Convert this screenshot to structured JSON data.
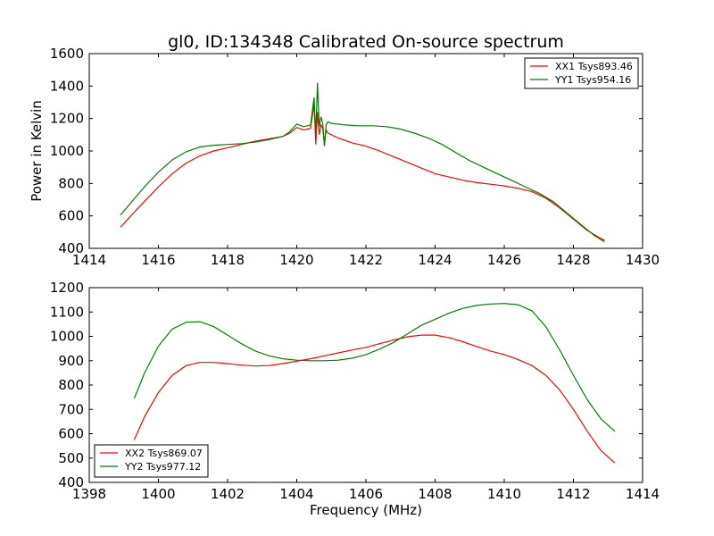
{
  "chart_data": [
    {
      "type": "line",
      "title": "gl0, ID:134348 Calibrated On-source spectrum",
      "xlabel": "",
      "ylabel": "Power in Kelvin",
      "xlim": [
        1414,
        1430
      ],
      "ylim": [
        400,
        1600
      ],
      "xticks": [
        "1414",
        "1416",
        "1418",
        "1420",
        "1422",
        "1424",
        "1426",
        "1428",
        "1430"
      ],
      "yticks": [
        "400",
        "600",
        "800",
        "1000",
        "1200",
        "1400",
        "1600"
      ],
      "legend_position": "top-right",
      "grid": false,
      "series": [
        {
          "name": "XX1 Tsys893.46",
          "color": "#ff0000",
          "x": [
            1414.9,
            1415.2,
            1415.6,
            1416.0,
            1416.4,
            1416.8,
            1417.2,
            1417.6,
            1418.0,
            1418.4,
            1418.8,
            1419.2,
            1419.6,
            1419.8,
            1420.0,
            1420.2,
            1420.4,
            1420.5,
            1420.55,
            1420.6,
            1420.65,
            1420.7,
            1420.75,
            1420.8,
            1420.85,
            1420.9,
            1421.0,
            1421.2,
            1421.6,
            1422.0,
            1422.4,
            1422.8,
            1423.2,
            1423.6,
            1424.0,
            1424.4,
            1424.8,
            1425.2,
            1425.6,
            1426.0,
            1426.4,
            1426.8,
            1427.2,
            1427.6,
            1428.0,
            1428.4,
            1428.8,
            1428.9
          ],
          "y": [
            530,
            600,
            690,
            780,
            860,
            925,
            970,
            1000,
            1020,
            1040,
            1060,
            1075,
            1090,
            1110,
            1145,
            1130,
            1140,
            1290,
            1040,
            1240,
            1100,
            1160,
            1140,
            1040,
            1130,
            1110,
            1100,
            1080,
            1050,
            1030,
            1000,
            965,
            930,
            895,
            860,
            840,
            820,
            805,
            795,
            785,
            770,
            750,
            710,
            650,
            580,
            510,
            460,
            450
          ]
        },
        {
          "name": "YY1 Tsys954.16",
          "color": "#008000",
          "x": [
            1414.9,
            1415.2,
            1415.6,
            1416.0,
            1416.4,
            1416.8,
            1417.2,
            1417.6,
            1418.0,
            1418.4,
            1418.8,
            1419.2,
            1419.6,
            1419.8,
            1420.0,
            1420.2,
            1420.4,
            1420.5,
            1420.55,
            1420.6,
            1420.65,
            1420.7,
            1420.75,
            1420.8,
            1420.85,
            1420.9,
            1421.0,
            1421.4,
            1421.8,
            1422.2,
            1422.6,
            1423.0,
            1423.4,
            1423.8,
            1424.2,
            1424.6,
            1425.0,
            1425.4,
            1425.8,
            1426.2,
            1426.6,
            1427.0,
            1427.4,
            1427.8,
            1428.2,
            1428.6,
            1428.9
          ],
          "y": [
            605,
            680,
            780,
            870,
            945,
            995,
            1025,
            1035,
            1040,
            1045,
            1055,
            1070,
            1090,
            1120,
            1165,
            1150,
            1160,
            1330,
            1100,
            1420,
            1150,
            1210,
            1170,
            1030,
            1160,
            1180,
            1170,
            1160,
            1155,
            1155,
            1150,
            1135,
            1110,
            1080,
            1040,
            990,
            940,
            900,
            860,
            820,
            780,
            740,
            690,
            620,
            550,
            480,
            440
          ]
        }
      ]
    },
    {
      "type": "line",
      "title": "",
      "xlabel": "Frequency (MHz)",
      "ylabel": "",
      "xlim": [
        1398,
        1414
      ],
      "ylim": [
        400,
        1200
      ],
      "xticks": [
        "1398",
        "1400",
        "1402",
        "1404",
        "1406",
        "1408",
        "1410",
        "1412",
        "1414"
      ],
      "yticks": [
        "400",
        "500",
        "600",
        "700",
        "800",
        "900",
        "1000",
        "1100",
        "1200"
      ],
      "legend_position": "bottom-left",
      "grid": false,
      "series": [
        {
          "name": "XX2 Tsys869.07",
          "color": "#ff0000",
          "x": [
            1399.3,
            1399.6,
            1400.0,
            1400.4,
            1400.8,
            1401.2,
            1401.6,
            1402.0,
            1402.4,
            1402.8,
            1403.2,
            1403.6,
            1404.0,
            1404.4,
            1404.8,
            1405.2,
            1405.6,
            1406.0,
            1406.4,
            1406.8,
            1407.2,
            1407.6,
            1408.0,
            1408.4,
            1408.8,
            1409.2,
            1409.6,
            1410.0,
            1410.4,
            1410.8,
            1411.2,
            1411.6,
            1412.0,
            1412.4,
            1412.8,
            1413.2
          ],
          "y": [
            575,
            670,
            770,
            840,
            880,
            893,
            893,
            888,
            882,
            878,
            880,
            888,
            898,
            908,
            920,
            932,
            944,
            955,
            970,
            985,
            998,
            1005,
            1005,
            995,
            978,
            958,
            940,
            925,
            905,
            880,
            840,
            780,
            700,
            610,
            530,
            480
          ]
        },
        {
          "name": "YY2 Tsys977.12",
          "color": "#008000",
          "x": [
            1399.3,
            1399.6,
            1400.0,
            1400.4,
            1400.8,
            1401.2,
            1401.6,
            1402.0,
            1402.4,
            1402.8,
            1403.2,
            1403.6,
            1404.0,
            1404.4,
            1404.8,
            1405.2,
            1405.6,
            1406.0,
            1406.4,
            1406.8,
            1407.2,
            1407.6,
            1408.0,
            1408.4,
            1408.8,
            1409.2,
            1409.6,
            1410.0,
            1410.4,
            1410.8,
            1411.2,
            1411.6,
            1412.0,
            1412.4,
            1412.8,
            1413.2
          ],
          "y": [
            745,
            850,
            960,
            1030,
            1058,
            1060,
            1040,
            1005,
            970,
            940,
            920,
            908,
            902,
            900,
            900,
            902,
            910,
            925,
            948,
            975,
            1010,
            1045,
            1070,
            1095,
            1115,
            1127,
            1133,
            1135,
            1130,
            1105,
            1040,
            945,
            840,
            740,
            660,
            610
          ]
        }
      ]
    }
  ]
}
